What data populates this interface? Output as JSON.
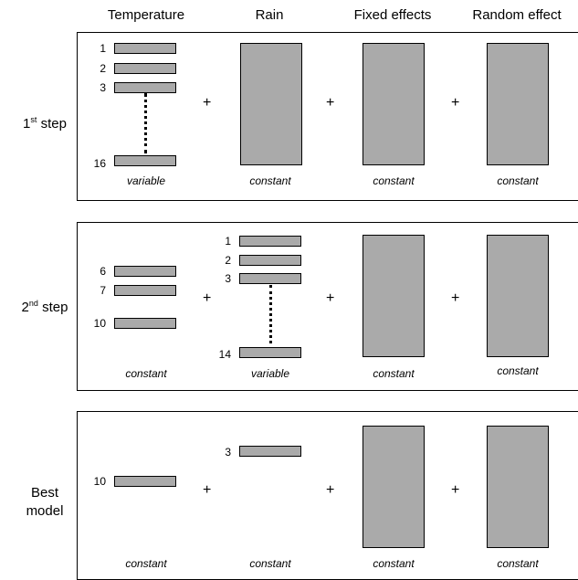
{
  "columns": {
    "temperature": "Temperature",
    "rain": "Rain",
    "fixed": "Fixed effects",
    "random": "Random effect"
  },
  "panels": [
    {
      "label_main": "1",
      "label_sup": "st",
      "label_tail": " step",
      "temp_numbers": [
        "1",
        "2",
        "3",
        "16"
      ],
      "footers": [
        "variable",
        "constant",
        "constant",
        "constant"
      ]
    },
    {
      "label_main": "2",
      "label_sup": "nd",
      "label_tail": " step",
      "temp_numbers": [
        "6",
        "7",
        "10"
      ],
      "rain_numbers": [
        "1",
        "2",
        "3",
        "14"
      ],
      "footers": [
        "constant",
        "variable",
        "constant",
        "constant"
      ]
    },
    {
      "label_line1": "Best",
      "label_line2": "model",
      "temp_numbers": [
        "10"
      ],
      "rain_numbers": [
        "3"
      ],
      "footers": [
        "constant",
        "constant",
        "constant",
        "constant"
      ]
    }
  ],
  "plus_sign": "+"
}
